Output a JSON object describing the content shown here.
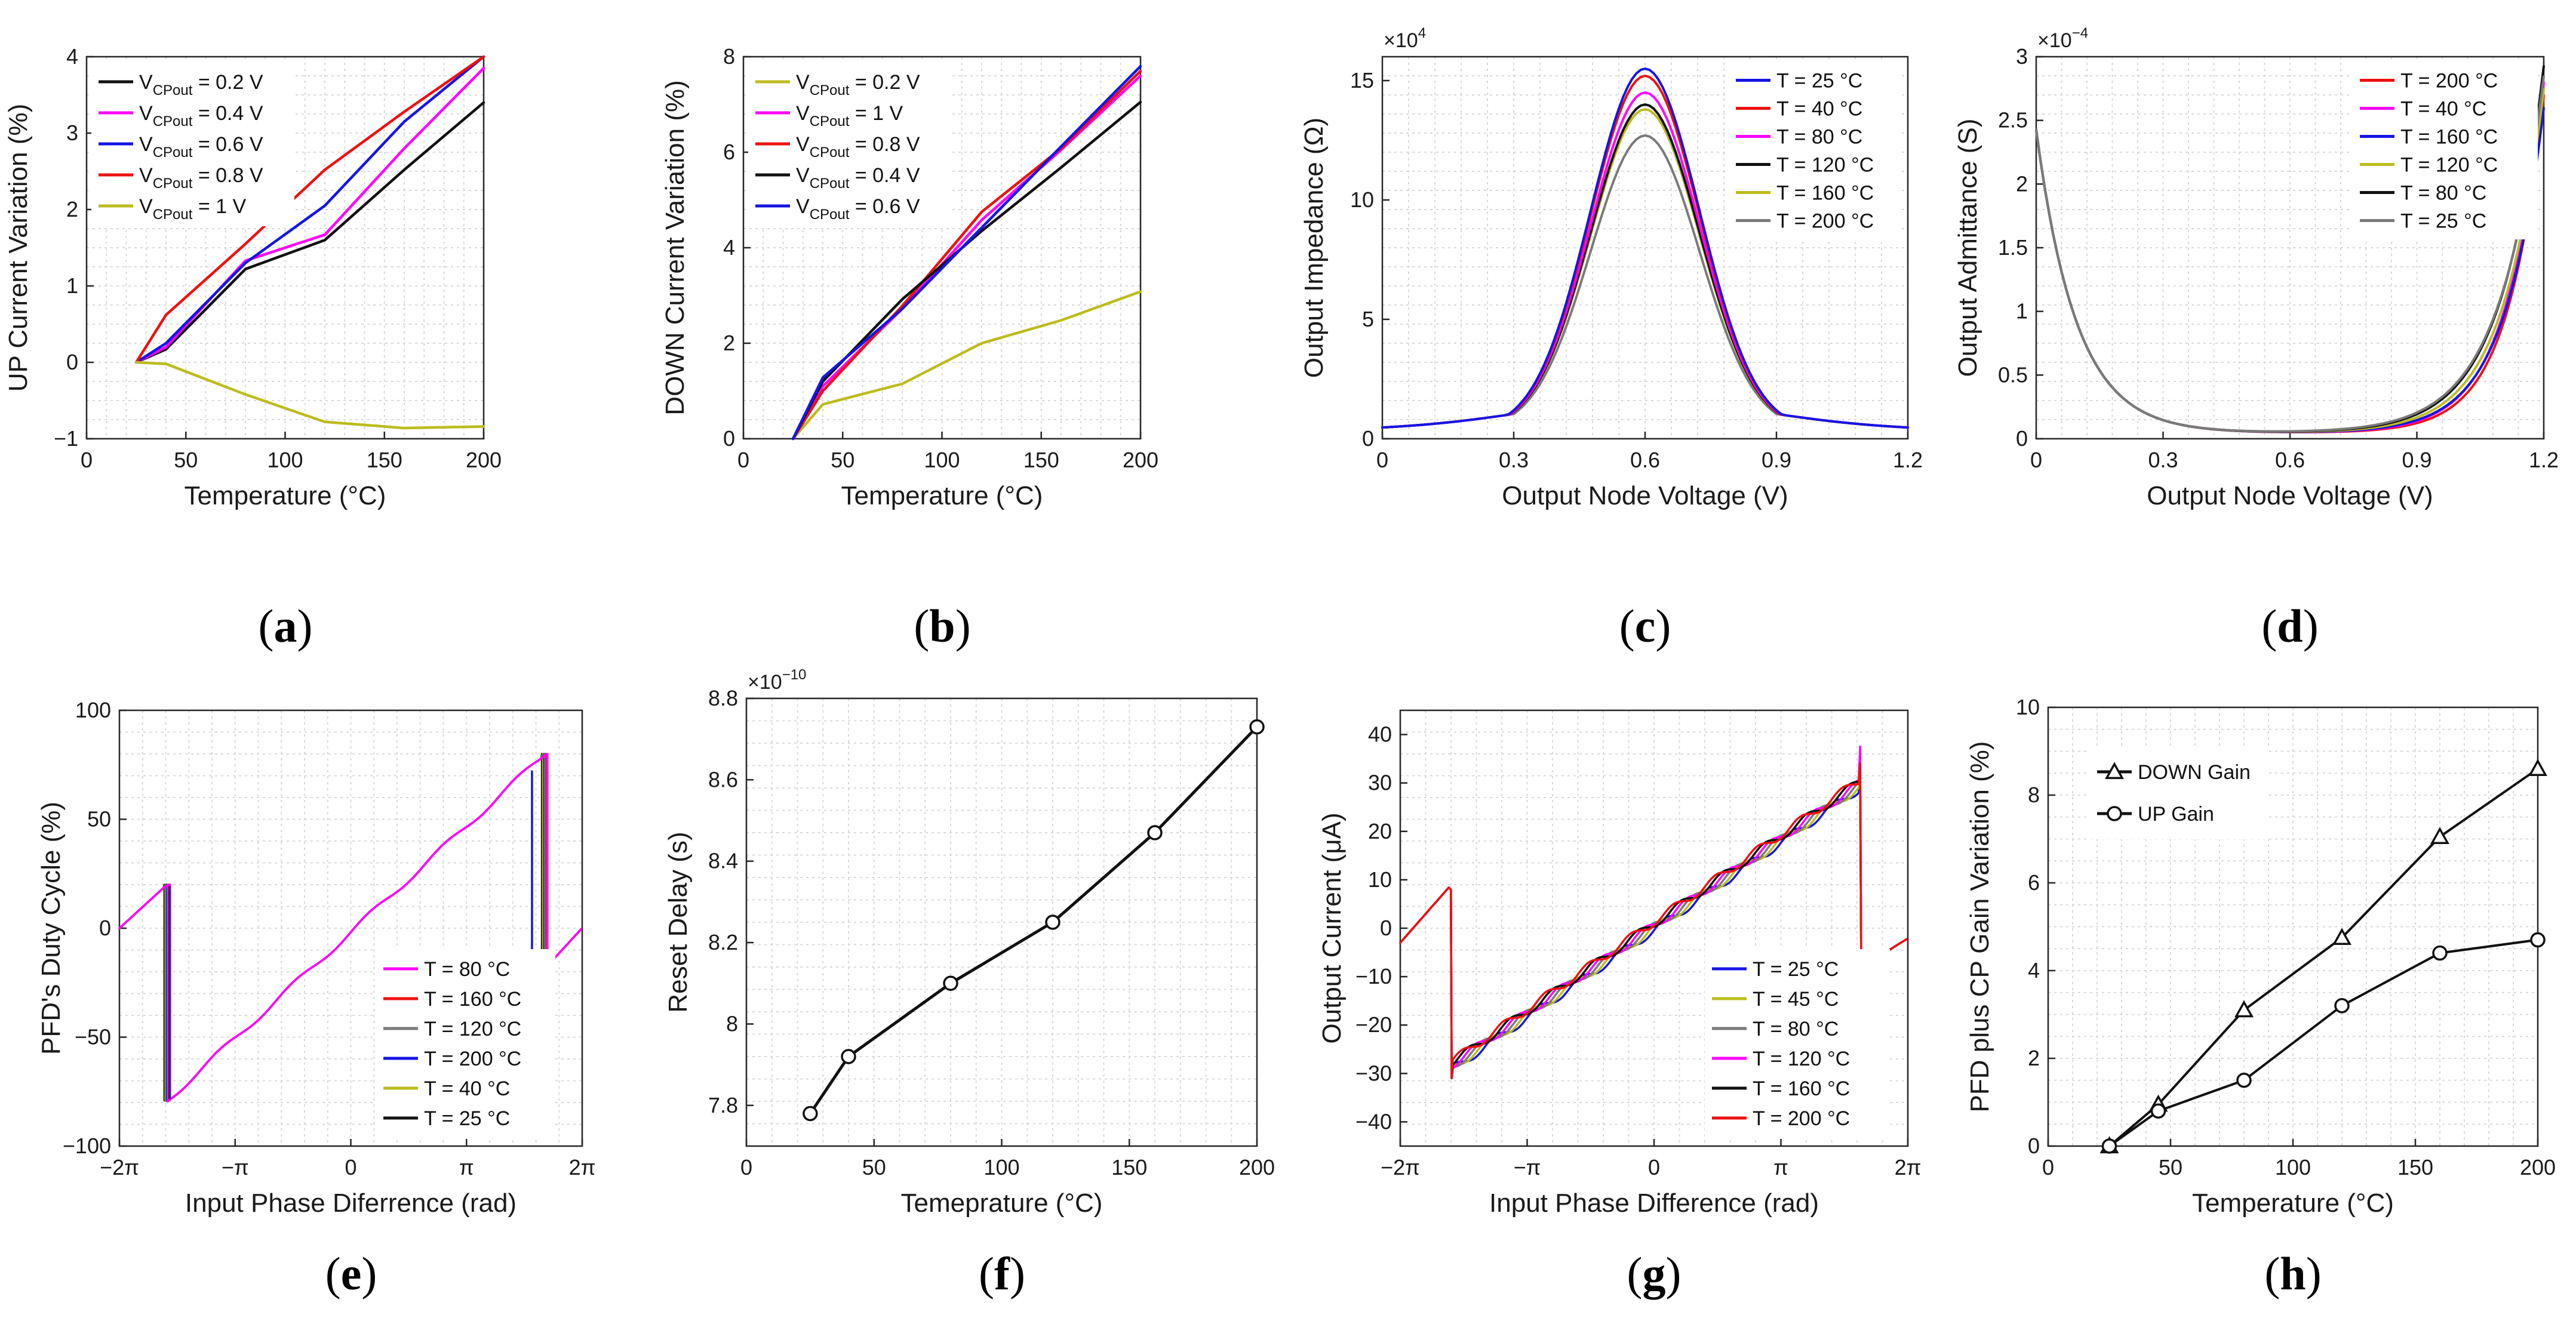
{
  "colors": {
    "black": "#111111",
    "magenta": "#ff00ff",
    "blue": "#1515e6",
    "red": "#ee1111",
    "olive": "#bcbc1e",
    "gray": "#7a7a7a"
  },
  "chart_data": [
    {
      "id": "a",
      "caption": "a",
      "type": "line",
      "xlabel": "Temperature (°C)",
      "ylabel": "UP Current Variation (%)",
      "xlim": [
        0,
        200
      ],
      "ylim": [
        -1,
        4
      ],
      "xticks": [
        0,
        50,
        100,
        150,
        200
      ],
      "xticklabels": [
        "0",
        "50",
        "100",
        "150",
        "200"
      ],
      "yticks": [
        -1,
        0,
        1,
        2,
        3,
        4
      ],
      "yticklabels": [
        "−1",
        "0",
        "1",
        "2",
        "3",
        "4"
      ],
      "legend_position": "top-left",
      "series": [
        {
          "name": "V",
          "sub": "CPout",
          "suffix": " = 0.2 V",
          "color": "black",
          "x": [
            25,
            40,
            80,
            120,
            160,
            200
          ],
          "y": [
            0,
            0.17,
            1.22,
            1.6,
            2.52,
            3.4
          ]
        },
        {
          "name": "V",
          "sub": "CPout",
          "suffix": " = 0.4 V",
          "color": "magenta",
          "x": [
            25,
            40,
            80,
            120,
            160,
            200
          ],
          "y": [
            0,
            0.2,
            1.33,
            1.67,
            2.8,
            3.85
          ]
        },
        {
          "name": "V",
          "sub": "CPout",
          "suffix": " = 0.6 V",
          "color": "blue",
          "x": [
            25,
            40,
            80,
            120,
            160,
            200
          ],
          "y": [
            0,
            0.25,
            1.3,
            2.05,
            3.15,
            4.0
          ]
        },
        {
          "name": "V",
          "sub": "CPout",
          "suffix": " = 0.8 V",
          "color": "red",
          "x": [
            25,
            40,
            80,
            120,
            160,
            200
          ],
          "y": [
            0,
            0.62,
            1.55,
            2.52,
            3.28,
            4.0
          ]
        },
        {
          "name": "V",
          "sub": "CPout",
          "suffix": " = 1 V",
          "color": "olive",
          "x": [
            25,
            40,
            80,
            120,
            160,
            200
          ],
          "y": [
            0,
            -0.02,
            -0.42,
            -0.78,
            -0.86,
            -0.84
          ]
        }
      ]
    },
    {
      "id": "b",
      "caption": "b",
      "type": "line",
      "xlabel": "Temperature (°C)",
      "ylabel": "DOWN Current Variation (%)",
      "xlim": [
        0,
        200
      ],
      "ylim": [
        0,
        8
      ],
      "xticks": [
        0,
        50,
        100,
        150,
        200
      ],
      "xticklabels": [
        "0",
        "50",
        "100",
        "150",
        "200"
      ],
      "yticks": [
        0,
        2,
        4,
        6,
        8
      ],
      "yticklabels": [
        "0",
        "2",
        "4",
        "6",
        "8"
      ],
      "legend_position": "top-left",
      "series": [
        {
          "name": "V",
          "sub": "CPout",
          "suffix": " = 0.2 V",
          "color": "olive",
          "x": [
            25,
            40,
            80,
            120,
            160,
            200
          ],
          "y": [
            0,
            0.72,
            1.15,
            2.0,
            2.48,
            3.08
          ]
        },
        {
          "name": "V",
          "sub": "CPout",
          "suffix": " = 1 V",
          "color": "magenta",
          "x": [
            25,
            40,
            80,
            120,
            160,
            200
          ],
          "y": [
            0,
            1.1,
            2.72,
            4.58,
            6.05,
            7.6
          ]
        },
        {
          "name": "V",
          "sub": "CPout",
          "suffix": " = 0.8 V",
          "color": "red",
          "x": [
            25,
            40,
            80,
            120,
            160,
            200
          ],
          "y": [
            0,
            1.0,
            2.78,
            4.75,
            6.08,
            7.7
          ]
        },
        {
          "name": "V",
          "sub": "CPout",
          "suffix": " = 0.4 V",
          "color": "black",
          "x": [
            25,
            40,
            80,
            120,
            160,
            200
          ],
          "y": [
            0,
            1.2,
            2.92,
            4.35,
            5.68,
            7.05
          ]
        },
        {
          "name": "V",
          "sub": "CPout",
          "suffix": " = 0.6 V",
          "color": "blue",
          "x": [
            25,
            40,
            80,
            120,
            160,
            200
          ],
          "y": [
            0,
            1.28,
            2.72,
            4.42,
            6.12,
            7.8
          ]
        }
      ]
    },
    {
      "id": "c",
      "caption": "c",
      "type": "line",
      "xlabel": "Output Node Voltage (V)",
      "ylabel": "Output Impedance (Ω)",
      "exponent_base": "×10",
      "exponent_power": "4",
      "xlim": [
        0,
        1.2
      ],
      "ylim": [
        0,
        16
      ],
      "xticks": [
        0,
        0.3,
        0.6,
        0.9,
        1.2
      ],
      "xticklabels": [
        "0",
        "0.3",
        "0.6",
        "0.9",
        "1.2"
      ],
      "yticks": [
        0,
        5,
        10,
        15
      ],
      "yticklabels": [
        "0",
        "5",
        "10",
        "15"
      ],
      "legend_position": "top-right",
      "series": [
        {
          "name": "T = 25 °C",
          "color": "blue",
          "peak": 15.5
        },
        {
          "name": "T = 40 °C",
          "color": "red",
          "peak": 15.2
        },
        {
          "name": "T = 80 °C",
          "color": "magenta",
          "peak": 14.5
        },
        {
          "name": "T = 120 °C",
          "color": "black",
          "peak": 14.0
        },
        {
          "name": "T = 160 °C",
          "color": "olive",
          "peak": 13.8
        },
        {
          "name": "T = 200 °C",
          "color": "gray",
          "peak": 12.7
        }
      ]
    },
    {
      "id": "d",
      "caption": "d",
      "type": "line",
      "xlabel": "Output Node Voltage (V)",
      "ylabel": "Output Admittance (S)",
      "exponent_base": "×10",
      "exponent_power": "−4",
      "xlim": [
        0,
        1.2
      ],
      "ylim": [
        0,
        3
      ],
      "xticks": [
        0,
        0.3,
        0.6,
        0.9,
        1.2
      ],
      "xticklabels": [
        "0",
        "0.3",
        "0.6",
        "0.9",
        "1.2"
      ],
      "yticks": [
        0,
        0.5,
        1,
        1.5,
        2,
        2.5,
        3
      ],
      "yticklabels": [
        "0",
        "0.5",
        "1",
        "1.5",
        "2",
        "2.5",
        "3"
      ],
      "legend_position": "top-right",
      "series": [
        {
          "name": "T = 200 °C",
          "color": "red",
          "end": 2.65
        },
        {
          "name": "T = 40 °C",
          "color": "magenta",
          "end": 2.75
        },
        {
          "name": "T = 160 °C",
          "color": "blue",
          "end": 2.55
        },
        {
          "name": "T = 120 °C",
          "color": "olive",
          "end": 2.7
        },
        {
          "name": "T = 80 °C",
          "color": "black",
          "end": 2.88
        },
        {
          "name": "T = 25 °C",
          "color": "gray",
          "end": 2.8
        }
      ]
    },
    {
      "id": "e",
      "caption": "e",
      "type": "line",
      "xlabel": "Input Phase Diferrence (rad)",
      "ylabel": "PFD's Duty Cycle (%)",
      "xlim": [
        -6.2832,
        6.2832
      ],
      "ylim": [
        -100,
        100
      ],
      "xticks": [
        -6.2832,
        -3.1416,
        0,
        3.1416,
        6.2832
      ],
      "xticklabels": [
        "−2π",
        "−π",
        "0",
        "π",
        "2π"
      ],
      "yticks": [
        -100,
        -50,
        0,
        50,
        100
      ],
      "yticklabels": [
        "−100",
        "−50",
        "0",
        "50",
        "100"
      ],
      "legend_position": "bottom-right",
      "series": [
        {
          "name": "T = 80 °C",
          "color": "magenta"
        },
        {
          "name": "T = 160 °C",
          "color": "red"
        },
        {
          "name": "T = 120 °C",
          "color": "gray"
        },
        {
          "name": "T = 200 °C",
          "color": "blue"
        },
        {
          "name": "T = 40 °C",
          "color": "olive"
        },
        {
          "name": "T = 25 °C",
          "color": "black"
        }
      ]
    },
    {
      "id": "f",
      "caption": "f",
      "type": "line",
      "xlabel": "Temeprature (°C)",
      "ylabel": "Reset Delay (s)",
      "exponent_base": "×10",
      "exponent_power": "−10",
      "xlim": [
        0,
        200
      ],
      "ylim": [
        7.7,
        8.8
      ],
      "xticks": [
        0,
        50,
        100,
        150,
        200
      ],
      "xticklabels": [
        "0",
        "50",
        "100",
        "150",
        "200"
      ],
      "yticks": [
        7.8,
        8,
        8.2,
        8.4,
        8.6,
        8.8
      ],
      "yticklabels": [
        "7.8",
        "8",
        "8.2",
        "8.4",
        "8.6",
        "8.8"
      ],
      "marker": "circle",
      "series": [
        {
          "name": "Reset Delay",
          "color": "black",
          "x": [
            25,
            40,
            80,
            120,
            160,
            200
          ],
          "y": [
            7.78,
            7.92,
            8.1,
            8.25,
            8.47,
            8.73
          ]
        }
      ]
    },
    {
      "id": "g",
      "caption": "g",
      "type": "line",
      "xlabel": "Input Phase Difference (rad)",
      "ylabel": "Output Current (μA)",
      "xlim": [
        -6.2832,
        6.2832
      ],
      "ylim": [
        -45,
        45
      ],
      "xticks": [
        -6.2832,
        -3.1416,
        0,
        3.1416,
        6.2832
      ],
      "xticklabels": [
        "−2π",
        "−π",
        "0",
        "π",
        "2π"
      ],
      "yticks": [
        -40,
        -30,
        -20,
        -10,
        0,
        10,
        20,
        30,
        40
      ],
      "yticklabels": [
        "−40",
        "−30",
        "−20",
        "−10",
        "0",
        "10",
        "20",
        "30",
        "40"
      ],
      "legend_position": "bottom-right",
      "series": [
        {
          "name": "T = 25 °C",
          "color": "blue"
        },
        {
          "name": "T = 45 °C",
          "color": "olive"
        },
        {
          "name": "T = 80 °C",
          "color": "gray"
        },
        {
          "name": "T = 120 °C",
          "color": "magenta"
        },
        {
          "name": "T = 160 °C",
          "color": "black"
        },
        {
          "name": "T = 200 °C",
          "color": "red"
        }
      ]
    },
    {
      "id": "h",
      "caption": "h",
      "type": "line",
      "xlabel": "Temperature (°C)",
      "ylabel": "PFD plus CP Gain Variation (%)",
      "xlim": [
        0,
        200
      ],
      "ylim": [
        0,
        10
      ],
      "xticks": [
        0,
        50,
        100,
        150,
        200
      ],
      "xticklabels": [
        "0",
        "50",
        "100",
        "150",
        "200"
      ],
      "yticks": [
        0,
        2,
        4,
        6,
        8,
        10
      ],
      "yticklabels": [
        "0",
        "2",
        "4",
        "6",
        "8",
        "10"
      ],
      "legend_position": "top-left",
      "series": [
        {
          "name": "DOWN Gain",
          "color": "black",
          "marker": "triangle",
          "x": [
            25,
            45,
            80,
            120,
            160,
            200
          ],
          "y": [
            0,
            0.95,
            3.1,
            4.75,
            7.05,
            8.6
          ]
        },
        {
          "name": "UP Gain",
          "color": "black",
          "marker": "circle",
          "x": [
            25,
            45,
            80,
            120,
            160,
            200
          ],
          "y": [
            0,
            0.8,
            1.5,
            3.2,
            4.4,
            4.7
          ]
        }
      ]
    }
  ]
}
